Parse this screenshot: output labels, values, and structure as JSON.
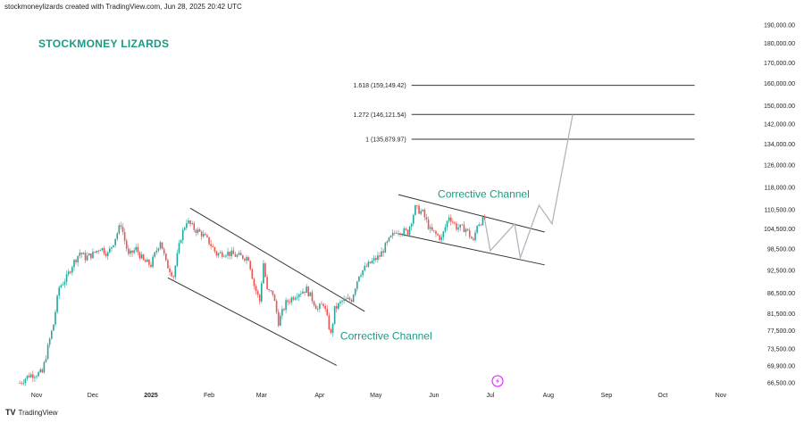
{
  "header": {
    "attribution": "stockmoneylizards created with TradingView.com, Jun 28, 2025 20:42 UTC"
  },
  "brand": {
    "title": "STOCKMONEY LIZARDS"
  },
  "footer": {
    "logo": "TV",
    "text": "TradingView"
  },
  "colors": {
    "up": "#26a69a",
    "down": "#ef5350",
    "projection": "#b2b5be",
    "annotation": "#1a9a85",
    "lines": "#333333"
  },
  "chart_data": {
    "type": "candlestick",
    "y_scale": "log",
    "y_tick_labels": [
      "190,000.00",
      "180,000.00",
      "170,000.00",
      "160,000.00",
      "150,000.00",
      "142,000.00",
      "134,000.00",
      "126,000.00",
      "118,000.00",
      "110,500.00",
      "104,500.00",
      "98,500.00",
      "92,500.00",
      "86,500.00",
      "81,500.00",
      "77,500.00",
      "73,500.00",
      "69,900.00",
      "66,500.00"
    ],
    "y_ticks": [
      190000,
      180000,
      170000,
      160000,
      150000,
      142000,
      134000,
      126000,
      118000,
      110500,
      104500,
      98500,
      92500,
      86500,
      81500,
      77500,
      73500,
      69900,
      66500
    ],
    "x_tick_labels": [
      {
        "label": "Nov",
        "date": "2024-11-01",
        "bold": false
      },
      {
        "label": "Dec",
        "date": "2024-12-01",
        "bold": false
      },
      {
        "label": "2025",
        "date": "2025-01-01",
        "bold": true
      },
      {
        "label": "Feb",
        "date": "2025-02-01",
        "bold": false
      },
      {
        "label": "Mar",
        "date": "2025-03-01",
        "bold": false
      },
      {
        "label": "Apr",
        "date": "2025-04-01",
        "bold": false
      },
      {
        "label": "May",
        "date": "2025-05-01",
        "bold": false
      },
      {
        "label": "Jun",
        "date": "2025-06-01",
        "bold": false
      },
      {
        "label": "Jul",
        "date": "2025-07-01",
        "bold": false
      },
      {
        "label": "Aug",
        "date": "2025-08-01",
        "bold": false
      },
      {
        "label": "Sep",
        "date": "2025-09-01",
        "bold": false
      },
      {
        "label": "Oct",
        "date": "2025-10-01",
        "bold": false
      },
      {
        "label": "Nov",
        "date": "2025-11-01",
        "bold": false
      }
    ],
    "price_path": [
      [
        "2024-10-23",
        66500
      ],
      [
        "2024-10-28",
        68000
      ],
      [
        "2024-11-04",
        68500
      ],
      [
        "2024-11-06",
        72000
      ],
      [
        "2024-11-10",
        79000
      ],
      [
        "2024-11-13",
        88000
      ],
      [
        "2024-11-17",
        90500
      ],
      [
        "2024-11-20",
        94000
      ],
      [
        "2024-11-24",
        97500
      ],
      [
        "2024-11-27",
        96000
      ],
      [
        "2024-12-01",
        97000
      ],
      [
        "2024-12-05",
        99000
      ],
      [
        "2024-12-09",
        97000
      ],
      [
        "2024-12-12",
        100500
      ],
      [
        "2024-12-16",
        106000
      ],
      [
        "2024-12-18",
        101000
      ],
      [
        "2024-12-20",
        96500
      ],
      [
        "2024-12-24",
        98500
      ],
      [
        "2024-12-28",
        95000
      ],
      [
        "2025-01-01",
        94000
      ],
      [
        "2025-01-06",
        101000
      ],
      [
        "2025-01-09",
        94500
      ],
      [
        "2025-01-13",
        91000
      ],
      [
        "2025-01-17",
        102000
      ],
      [
        "2025-01-20",
        107000
      ],
      [
        "2025-01-24",
        104500
      ],
      [
        "2025-01-28",
        103000
      ],
      [
        "2025-02-01",
        100500
      ],
      [
        "2025-02-05",
        97000
      ],
      [
        "2025-02-10",
        97500
      ],
      [
        "2025-02-16",
        96500
      ],
      [
        "2025-02-22",
        96000
      ],
      [
        "2025-02-25",
        88500
      ],
      [
        "2025-02-28",
        84500
      ],
      [
        "2025-03-02",
        94500
      ],
      [
        "2025-03-04",
        87000
      ],
      [
        "2025-03-07",
        86500
      ],
      [
        "2025-03-10",
        79500
      ],
      [
        "2025-03-14",
        84000
      ],
      [
        "2025-03-20",
        86500
      ],
      [
        "2025-03-25",
        87500
      ],
      [
        "2025-03-31",
        82500
      ],
      [
        "2025-04-03",
        84000
      ],
      [
        "2025-04-07",
        76500
      ],
      [
        "2025-04-09",
        82500
      ],
      [
        "2025-04-13",
        84500
      ],
      [
        "2025-04-18",
        85000
      ],
      [
        "2025-04-22",
        91500
      ],
      [
        "2025-04-28",
        94500
      ],
      [
        "2025-05-03",
        96500
      ],
      [
        "2025-05-08",
        101000
      ],
      [
        "2025-05-12",
        104000
      ],
      [
        "2025-05-18",
        103500
      ],
      [
        "2025-05-22",
        111000
      ],
      [
        "2025-05-26",
        109500
      ],
      [
        "2025-05-30",
        104000
      ],
      [
        "2025-06-05",
        101500
      ],
      [
        "2025-06-09",
        108500
      ],
      [
        "2025-06-13",
        105000
      ],
      [
        "2025-06-18",
        104500
      ],
      [
        "2025-06-22",
        100500
      ],
      [
        "2025-06-24",
        106000
      ],
      [
        "2025-06-28",
        107500
      ]
    ],
    "fib_levels": [
      {
        "label": "1.618 (159,149.42)",
        "value": 159149.42,
        "from": "2025-05-20",
        "to": "2025-10-18"
      },
      {
        "label": "1.272 (146,121.54)",
        "value": 146121.54,
        "from": "2025-05-20",
        "to": "2025-10-18"
      },
      {
        "label": "1 (135,879.97)",
        "value": 135879.97,
        "from": "2025-05-20",
        "to": "2025-10-18"
      }
    ],
    "channels": [
      {
        "label": "Corrective Channel",
        "upper": [
          [
            "2025-01-22",
            111000
          ],
          [
            "2025-04-25",
            82000
          ]
        ],
        "lower": [
          [
            "2025-01-10",
            90500
          ],
          [
            "2025-04-10",
            70000
          ]
        ],
        "label_anchor": [
          "2025-04-12",
          75500
        ]
      },
      {
        "label": "Corrective Channel",
        "upper": [
          [
            "2025-05-13",
            115500
          ],
          [
            "2025-07-30",
            103500
          ]
        ],
        "lower": [
          [
            "2025-05-13",
            103000
          ],
          [
            "2025-07-30",
            94000
          ]
        ],
        "label_anchor": [
          "2025-06-03",
          114500
        ]
      }
    ],
    "projection": [
      [
        "2025-06-28",
        107500
      ],
      [
        "2025-07-01",
        98000
      ],
      [
        "2025-07-14",
        106000
      ],
      [
        "2025-07-17",
        96000
      ],
      [
        "2025-07-27",
        112000
      ],
      [
        "2025-08-03",
        106000
      ],
      [
        "2025-08-14",
        146100
      ]
    ]
  }
}
